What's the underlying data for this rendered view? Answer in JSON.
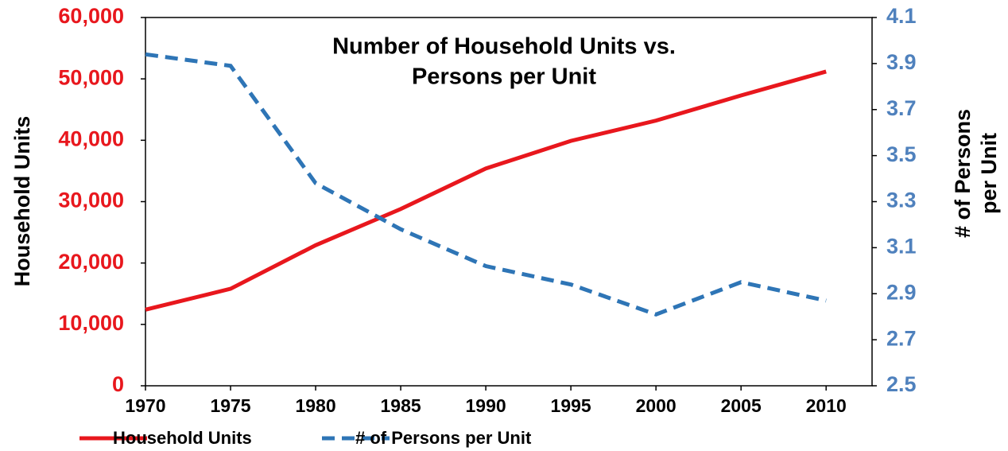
{
  "chart_data": {
    "type": "line",
    "title": [
      "Number of Household Units vs.",
      "Persons per Unit"
    ],
    "ylabel": "Household Units",
    "y2label": [
      "# of Persons",
      "per Unit"
    ],
    "x": [
      1970,
      1975,
      1980,
      1985,
      1990,
      1995,
      2000,
      2005,
      2010
    ],
    "xlim": [
      1970,
      2012.7
    ],
    "xticks": [
      1970,
      1975,
      1980,
      1985,
      1990,
      1995,
      2000,
      2005,
      2010
    ],
    "ylim": [
      0,
      60000
    ],
    "yticks": [
      0,
      {
        "value": 10000,
        "label": "10,000"
      },
      {
        "value": 20000,
        "label": "20,000"
      },
      {
        "value": 30000,
        "label": "30,000"
      },
      {
        "value": 40000,
        "label": "40,000"
      },
      {
        "value": 50000,
        "label": "50,000"
      },
      {
        "value": 60000,
        "label": "60,000"
      }
    ],
    "y2lim": [
      2.5,
      4.1
    ],
    "y2ticks": [
      2.5,
      2.7,
      2.9,
      3.1,
      3.3,
      3.5,
      3.7,
      3.9,
      4.1
    ],
    "grid": false,
    "legend": "bottom",
    "series": [
      {
        "name": "Household Units",
        "color": "#e8171d",
        "dash": false,
        "axis": "y",
        "values": [
          12400,
          15800,
          22900,
          28800,
          35400,
          39900,
          43200,
          47300,
          51200
        ]
      },
      {
        "name": "# of Persons per Unit",
        "color": "#2e75b6",
        "dash": true,
        "axis": "y2",
        "values": [
          3.94,
          3.89,
          3.38,
          3.18,
          3.02,
          2.94,
          2.81,
          2.95,
          2.87
        ]
      }
    ]
  }
}
